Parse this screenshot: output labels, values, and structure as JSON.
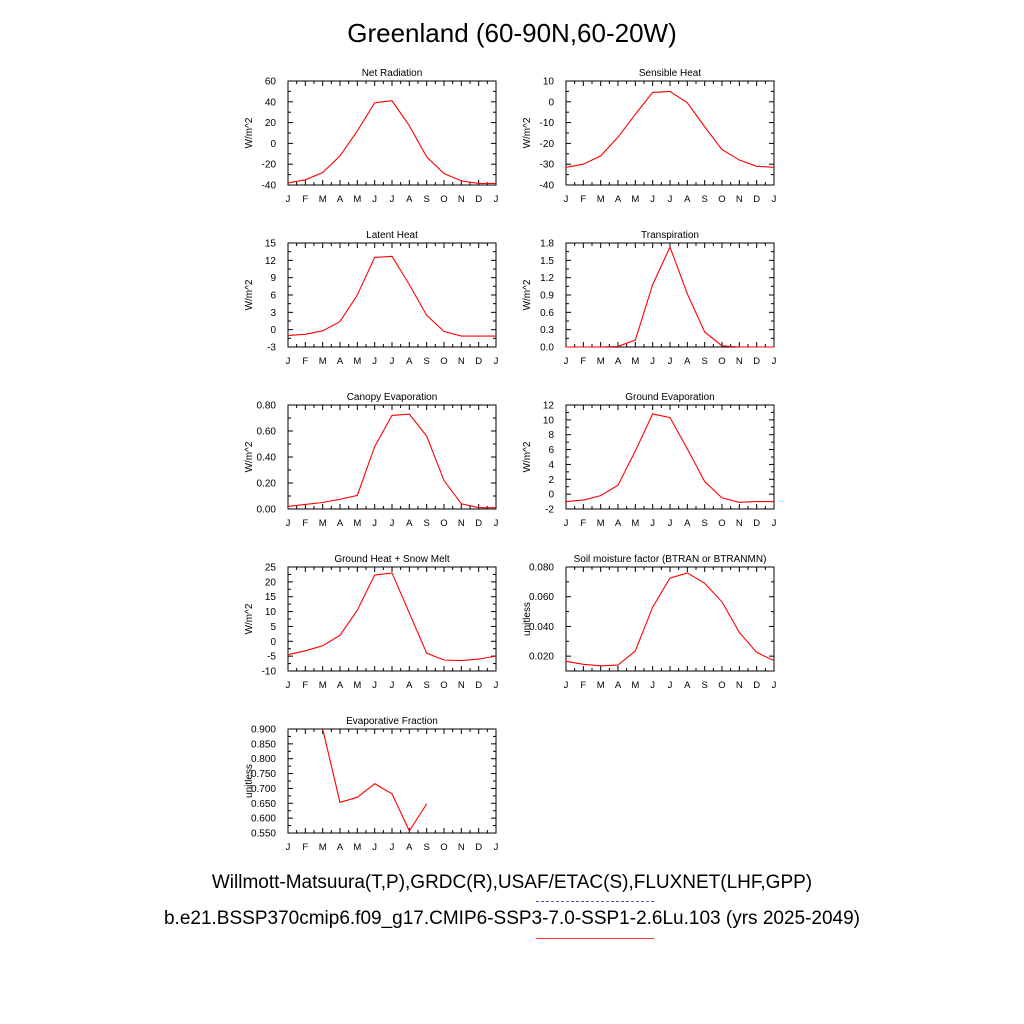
{
  "title": "Greenland (60-90N,60-20W)",
  "colors": {
    "series": "#ff0000",
    "axis": "#000000",
    "obs": "#5555dd"
  },
  "legend": {
    "observations": "Willmott-Matsuura(T,P),GRDC(R),USAF/ETAC(S),FLUXNET(LHF,GPP)",
    "model": "b.e21.BSSP370cmip6.f09_g17.CMIP6-SSP3-7.0-SSP1-2.6Lu.103 (yrs 2025-2049)"
  },
  "chart_data": [
    {
      "type": "line",
      "title": "Net Radiation",
      "ylabel": "W/m^2",
      "x": [
        "J",
        "F",
        "M",
        "A",
        "M",
        "J",
        "J",
        "A",
        "S",
        "O",
        "N",
        "D",
        "J"
      ],
      "ylim": [
        -40,
        60
      ],
      "yticks": [
        "60",
        "40",
        "20",
        "0",
        "-20",
        "-40"
      ],
      "series": [
        {
          "values": [
            -38,
            -35,
            -28,
            -12,
            12,
            39,
            41,
            17,
            -13,
            -29,
            -36,
            -38.5,
            -38.5
          ]
        }
      ]
    },
    {
      "type": "line",
      "title": "Sensible Heat",
      "ylabel": "W/m^2",
      "x": [
        "J",
        "F",
        "M",
        "A",
        "M",
        "J",
        "J",
        "A",
        "S",
        "O",
        "N",
        "D",
        "J"
      ],
      "ylim": [
        -40,
        10
      ],
      "yticks": [
        "10",
        "0",
        "-10",
        "-20",
        "-30",
        "-40"
      ],
      "series": [
        {
          "values": [
            -31.5,
            -30,
            -26,
            -17,
            -6,
            4.5,
            5,
            -0.5,
            -12,
            -23,
            -28,
            -31,
            -31.5
          ]
        }
      ]
    },
    {
      "type": "line",
      "title": "Latent Heat",
      "ylabel": "W/m^2",
      "x": [
        "J",
        "F",
        "M",
        "A",
        "M",
        "J",
        "J",
        "A",
        "S",
        "O",
        "N",
        "D",
        "J"
      ],
      "ylim": [
        -3,
        15
      ],
      "yticks": [
        "15",
        "12",
        "9",
        "6",
        "3",
        "0",
        "-3"
      ],
      "series": [
        {
          "values": [
            -1,
            -0.8,
            -0.2,
            1.4,
            6,
            12.5,
            12.7,
            7.8,
            2.5,
            -0.3,
            -1.1,
            -1.1,
            -1.1
          ]
        }
      ]
    },
    {
      "type": "line",
      "title": "Transpiration",
      "ylabel": "W/m^2",
      "x": [
        "J",
        "F",
        "M",
        "A",
        "M",
        "J",
        "J",
        "A",
        "S",
        "O",
        "N",
        "D",
        "J"
      ],
      "ylim": [
        0,
        1.8
      ],
      "yticks": [
        "1.8",
        "1.5",
        "1.2",
        "0.9",
        "0.6",
        "0.3",
        "0.0"
      ],
      "series": [
        {
          "values": [
            0,
            0,
            0,
            0.01,
            0.12,
            1.08,
            1.73,
            0.92,
            0.26,
            0.02,
            0,
            0,
            0
          ]
        }
      ]
    },
    {
      "type": "line",
      "title": "Canopy Evaporation",
      "ylabel": "W/m^2",
      "x": [
        "J",
        "F",
        "M",
        "A",
        "M",
        "J",
        "J",
        "A",
        "S",
        "O",
        "N",
        "D",
        "J"
      ],
      "ylim": [
        0,
        0.8
      ],
      "yticks": [
        "0.80",
        "0.60",
        "0.40",
        "0.20",
        "0.00"
      ],
      "series": [
        {
          "values": [
            0.02,
            0.035,
            0.05,
            0.075,
            0.105,
            0.48,
            0.72,
            0.73,
            0.56,
            0.22,
            0.04,
            0.01,
            0.01
          ]
        }
      ]
    },
    {
      "type": "line",
      "title": "Ground Evaporation",
      "ylabel": "W/m^2",
      "x": [
        "J",
        "F",
        "M",
        "A",
        "M",
        "J",
        "J",
        "A",
        "S",
        "O",
        "N",
        "D",
        "J"
      ],
      "ylim": [
        -2,
        12
      ],
      "yticks": [
        "12",
        "10",
        "8",
        "6",
        "4",
        "2",
        "0",
        "-2"
      ],
      "series": [
        {
          "values": [
            -1,
            -0.8,
            -0.2,
            1.2,
            5.8,
            10.8,
            10.3,
            6.1,
            1.7,
            -0.5,
            -1.1,
            -1,
            -1
          ]
        }
      ]
    },
    {
      "type": "line",
      "title": "Ground Heat + Snow Melt",
      "ylabel": "W/m^2",
      "x": [
        "J",
        "F",
        "M",
        "A",
        "M",
        "J",
        "J",
        "A",
        "S",
        "O",
        "N",
        "D",
        "J"
      ],
      "ylim": [
        -10,
        25
      ],
      "yticks": [
        "25",
        "20",
        "15",
        "10",
        "5",
        "0",
        "-5",
        "-10"
      ],
      "series": [
        {
          "values": [
            -4.5,
            -3.2,
            -1.5,
            2,
            10.5,
            22.3,
            23,
            9.5,
            -4,
            -6.3,
            -6.5,
            -6,
            -5
          ]
        }
      ]
    },
    {
      "type": "line",
      "title": "Soil moisture factor (BTRAN or BTRANMN)",
      "ylabel": "unitless",
      "x": [
        "J",
        "F",
        "M",
        "A",
        "M",
        "J",
        "J",
        "A",
        "S",
        "O",
        "N",
        "D",
        "J"
      ],
      "ylim": [
        0.01,
        0.08
      ],
      "yticks": [
        "0.080",
        "0.060",
        "0.040",
        "0.020"
      ],
      "ytick_values": [
        0.08,
        0.06,
        0.04,
        0.02
      ],
      "series": [
        {
          "values": [
            0.0165,
            0.0145,
            0.0135,
            0.014,
            0.0235,
            0.053,
            0.0725,
            0.076,
            0.069,
            0.0565,
            0.036,
            0.0225,
            0.017
          ]
        }
      ]
    },
    {
      "type": "line",
      "title": "Evaporative Fraction",
      "ylabel": "unitless",
      "x": [
        "J",
        "F",
        "M",
        "A",
        "M",
        "J",
        "J",
        "A",
        "S",
        "O",
        "N",
        "D",
        "J"
      ],
      "ylim": [
        0.55,
        0.9
      ],
      "yticks": [
        "0.900",
        "0.850",
        "0.800",
        "0.750",
        "0.700",
        "0.650",
        "0.600",
        "0.550"
      ],
      "series": [
        {
          "values": [
            null,
            null,
            0.9,
            0.653,
            0.67,
            0.716,
            0.682,
            0.557,
            0.648,
            null,
            null,
            null,
            null
          ]
        }
      ]
    }
  ]
}
